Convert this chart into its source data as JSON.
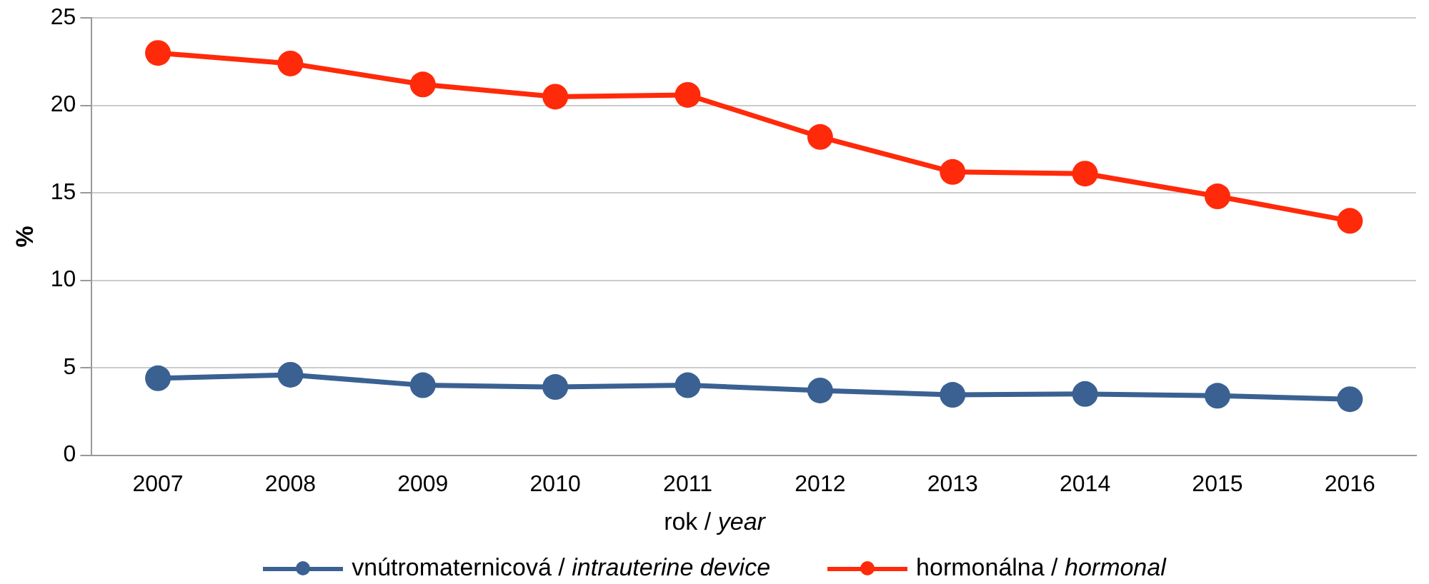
{
  "chart_data": {
    "type": "line",
    "xlabel": "rok / year",
    "ylabel": "%",
    "categories": [
      "2007",
      "2008",
      "2009",
      "2010",
      "2011",
      "2012",
      "2013",
      "2014",
      "2015",
      "2016"
    ],
    "series": [
      {
        "name": "vnútromaternicová / intrauterine device",
        "color": "#3a6192",
        "values": [
          4.4,
          4.6,
          4.0,
          3.9,
          4.0,
          3.7,
          3.45,
          3.5,
          3.4,
          3.2
        ]
      },
      {
        "name": "hormonálna / hormonal",
        "color": "#ff2a0a",
        "values": [
          23.0,
          22.4,
          21.2,
          20.5,
          20.6,
          18.2,
          16.2,
          16.1,
          14.8,
          13.4
        ]
      }
    ],
    "ylim": [
      0,
      25
    ],
    "yticks": [
      0,
      5,
      10,
      15,
      20,
      25
    ],
    "grid": "y",
    "legend": "bottom",
    "marker": "circle",
    "line_style": "solid"
  }
}
